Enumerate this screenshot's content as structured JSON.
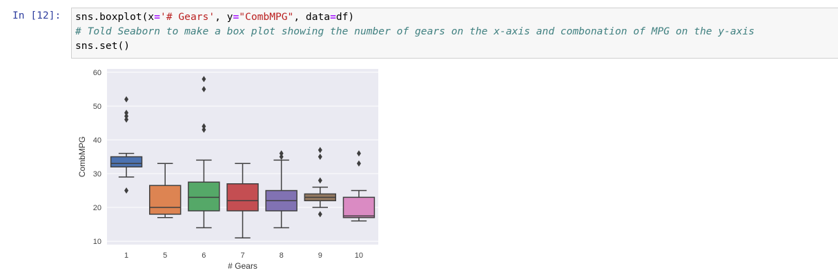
{
  "cell": {
    "prompt": "In [12]:",
    "code": {
      "line1": {
        "fn": "sns.boxplot(x",
        "eq1": "=",
        "xval": "'# Gears'",
        "sep1": ", y",
        "eq2": "=",
        "yval": "\"CombMPG\"",
        "sep2": ", data",
        "eq3": "=",
        "end": "df)"
      },
      "line2_comment": "# Told Seaborn to make a box plot showing the number of gears on the x-axis and combonation of MPG on the y-axis",
      "line3": "sns.set()"
    }
  },
  "chart_data": {
    "type": "box",
    "xlabel": "# Gears",
    "ylabel": "CombMPG",
    "ylim": [
      9,
      61
    ],
    "yticks": [
      10,
      20,
      30,
      40,
      50,
      60
    ],
    "categories": [
      "1",
      "5",
      "6",
      "7",
      "8",
      "9",
      "10"
    ],
    "colors": [
      "#4c72b0",
      "#dd8452",
      "#55a868",
      "#c44e52",
      "#8172b3",
      "#937860",
      "#da8bc3"
    ],
    "grid": true,
    "background": "#eaeaf2",
    "boxes": [
      {
        "category": "1",
        "whisker_low": 29,
        "q1": 32,
        "median": 33,
        "q3": 35,
        "whisker_high": 36,
        "outliers": [
          25,
          46,
          47,
          48,
          52
        ]
      },
      {
        "category": "5",
        "whisker_low": 17,
        "q1": 18,
        "median": 20,
        "q3": 26.5,
        "whisker_high": 33,
        "outliers": []
      },
      {
        "category": "6",
        "whisker_low": 14,
        "q1": 19,
        "median": 23,
        "q3": 27.5,
        "whisker_high": 34,
        "outliers": [
          43,
          44,
          55,
          58
        ]
      },
      {
        "category": "7",
        "whisker_low": 11,
        "q1": 19,
        "median": 22,
        "q3": 27,
        "whisker_high": 33,
        "outliers": []
      },
      {
        "category": "8",
        "whisker_low": 14,
        "q1": 19,
        "median": 22,
        "q3": 25,
        "whisker_high": 34,
        "outliers": [
          35,
          36
        ]
      },
      {
        "category": "9",
        "whisker_low": 20,
        "q1": 22,
        "median": 23,
        "q3": 24,
        "whisker_high": 26,
        "outliers": [
          18,
          28,
          35,
          37
        ]
      },
      {
        "category": "10",
        "whisker_low": 16,
        "q1": 17,
        "median": 17.5,
        "q3": 23,
        "whisker_high": 25,
        "outliers": [
          33,
          36
        ]
      }
    ]
  }
}
